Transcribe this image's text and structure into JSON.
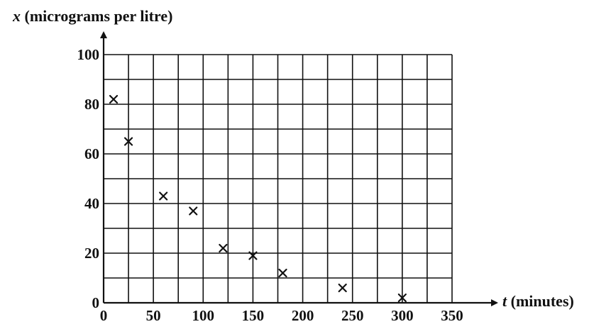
{
  "chart_data": {
    "type": "scatter",
    "title": "",
    "xlabel": {
      "var": "t",
      "text": " (minutes)"
    },
    "ylabel": {
      "var": "x",
      "text": " (micrograms per litre)"
    },
    "xlim": [
      0,
      350
    ],
    "ylim": [
      0,
      100
    ],
    "x_grid_step": 25,
    "y_grid_step": 10,
    "x_ticks": [
      0,
      50,
      100,
      150,
      200,
      250,
      300,
      350
    ],
    "y_ticks": [
      0,
      20,
      40,
      60,
      80,
      100
    ],
    "grid": true,
    "marker": "x",
    "points": [
      {
        "t": 10,
        "x": 82
      },
      {
        "t": 25,
        "x": 65
      },
      {
        "t": 60,
        "x": 43
      },
      {
        "t": 90,
        "x": 37
      },
      {
        "t": 120,
        "x": 22
      },
      {
        "t": 150,
        "x": 19
      },
      {
        "t": 180,
        "x": 12
      },
      {
        "t": 240,
        "x": 6
      },
      {
        "t": 300,
        "x": 2
      }
    ]
  }
}
